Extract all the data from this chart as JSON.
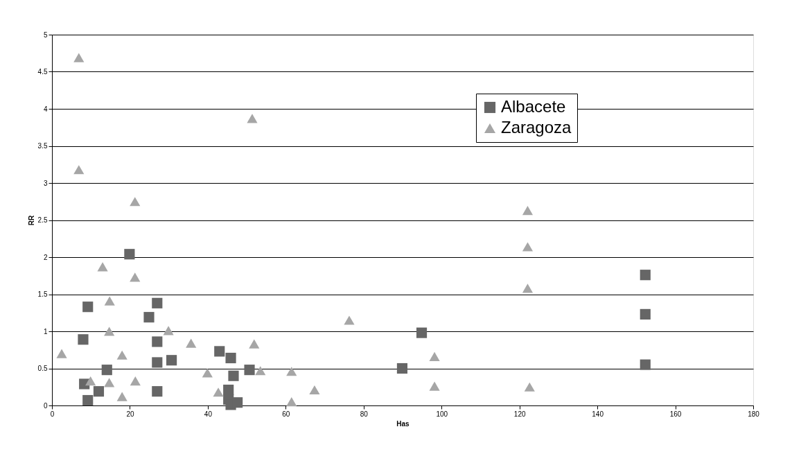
{
  "chart_data": {
    "type": "scatter",
    "xlabel": "Has",
    "ylabel": "RR",
    "xlim": [
      0,
      180
    ],
    "xticks": [
      0,
      20,
      40,
      60,
      80,
      100,
      120,
      140,
      160,
      180
    ],
    "ylim": [
      0,
      5
    ],
    "yticks": [
      0,
      0.5,
      1,
      1.5,
      2,
      2.5,
      3,
      3.5,
      4,
      4.5,
      5
    ],
    "grid": "y",
    "legend": "top right",
    "series": [
      {
        "name": "Albacete",
        "color": "#666666",
        "marker": "square",
        "x": [
          9.2,
          8.0,
          8.3,
          9.2,
          12.0,
          14.1,
          19.9,
          24.9,
          27.0,
          27.0,
          27.0,
          27.0,
          30.7,
          43.0,
          45.9,
          46.6,
          45.3,
          45.3,
          45.9,
          47.6,
          50.7,
          89.9,
          94.9,
          152.3,
          152.3,
          152.3
        ],
        "values": [
          1.33,
          0.89,
          0.29,
          0.07,
          0.19,
          0.48,
          2.04,
          1.19,
          1.38,
          0.86,
          0.58,
          0.19,
          0.61,
          0.73,
          0.64,
          0.4,
          0.21,
          0.08,
          0.01,
          0.04,
          0.48,
          0.5,
          0.98,
          1.76,
          1.23,
          0.55
        ]
      },
      {
        "name": "Zaragoza",
        "color": "#a6a6a6",
        "marker": "triangle",
        "x": [
          6.9,
          6.9,
          21.3,
          51.4,
          13.0,
          21.3,
          2.5,
          9.9,
          14.8,
          14.7,
          14.7,
          18.0,
          18.0,
          21.4,
          29.9,
          35.7,
          39.9,
          42.7,
          51.9,
          53.5,
          61.5,
          61.5,
          67.4,
          76.3,
          98.2,
          98.2,
          122.1,
          122.1,
          122.1,
          122.6
        ],
        "values": [
          4.69,
          3.18,
          2.75,
          3.87,
          1.87,
          1.73,
          0.7,
          0.33,
          1.41,
          1.0,
          0.31,
          0.68,
          0.12,
          0.33,
          1.01,
          0.84,
          0.44,
          0.18,
          0.83,
          0.47,
          0.46,
          0.05,
          0.21,
          1.15,
          0.66,
          0.26,
          2.63,
          2.14,
          1.58,
          0.25
        ]
      }
    ]
  }
}
